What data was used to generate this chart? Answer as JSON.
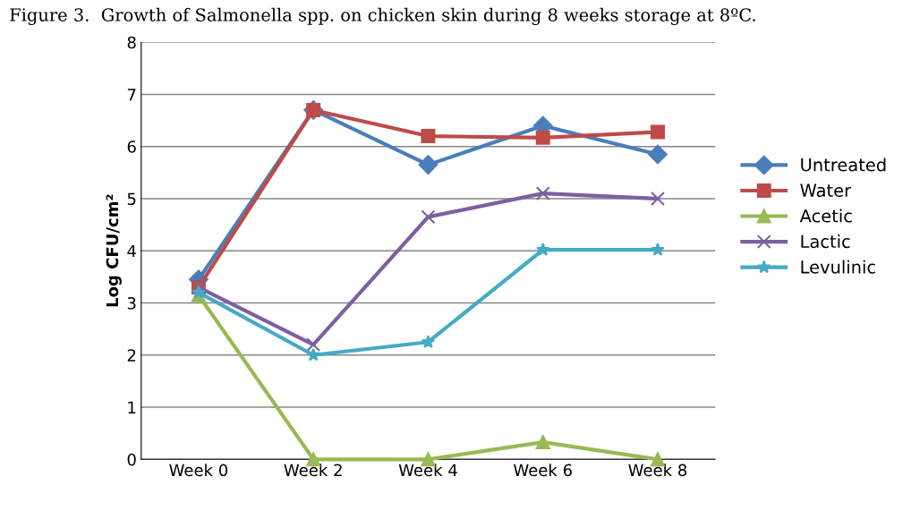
{
  "chart_data": {
    "type": "line",
    "title": "Figure 3.  Growth of Salmonella spp. on chicken skin during 8 weeks storage at 8ºC.",
    "ylabel": "Log CFU/cm²",
    "categories": [
      "Week 0",
      "Week 2",
      "Week 4",
      "Week 6",
      "Week 8"
    ],
    "series": [
      {
        "name": "Untreated",
        "color": "#4a7ebb",
        "marker": "diamond",
        "values": [
          3.45,
          6.7,
          5.65,
          6.4,
          5.85
        ]
      },
      {
        "name": "Water",
        "color": "#be4b48",
        "marker": "square",
        "values": [
          3.3,
          6.7,
          6.2,
          6.17,
          6.28
        ]
      },
      {
        "name": "Acetic",
        "color": "#98b954",
        "marker": "triangle",
        "values": [
          3.15,
          0,
          0,
          0.33,
          0
        ]
      },
      {
        "name": "Lactic",
        "color": "#7d60a0",
        "marker": "cross",
        "values": [
          3.3,
          2.2,
          4.65,
          5.1,
          5.0
        ]
      },
      {
        "name": "Levulinic",
        "color": "#46aac5",
        "marker": "star",
        "values": [
          3.2,
          2.0,
          2.25,
          4.02,
          4.02
        ]
      }
    ],
    "ylim": [
      0,
      8
    ],
    "yticks": [
      0,
      1,
      2,
      3,
      4,
      5,
      6,
      7,
      8
    ],
    "grid": "y",
    "legend": "right",
    "line_style": "solid"
  }
}
